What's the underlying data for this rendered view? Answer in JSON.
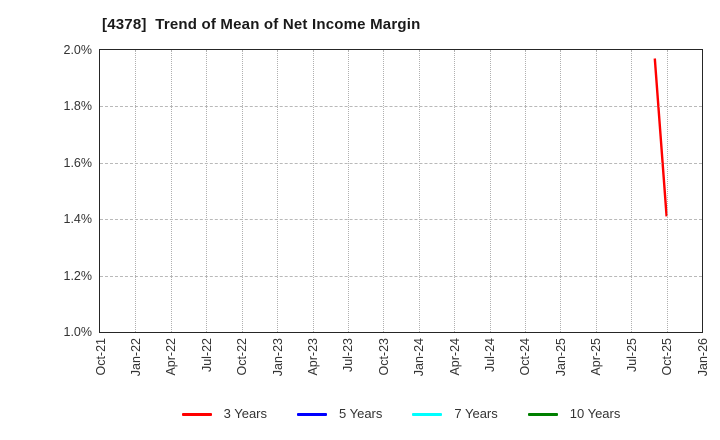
{
  "chart_data": {
    "type": "line",
    "title": "[4378]  Trend of Mean of Net Income Margin",
    "xlabel": "",
    "ylabel": "",
    "ylim": [
      1.0,
      2.0
    ],
    "y_tick_step": 0.2,
    "y_ticks": [
      {
        "value": 2.0,
        "label": "2.0%"
      },
      {
        "value": 1.8,
        "label": "1.8%"
      },
      {
        "value": 1.6,
        "label": "1.6%"
      },
      {
        "value": 1.4,
        "label": "1.4%"
      },
      {
        "value": 1.2,
        "label": "1.2%"
      },
      {
        "value": 1.0,
        "label": "1.0%"
      }
    ],
    "x_ticks": [
      "Oct-21",
      "Jan-22",
      "Apr-22",
      "Jul-22",
      "Oct-22",
      "Jan-23",
      "Apr-23",
      "Jul-23",
      "Oct-23",
      "Jan-24",
      "Apr-24",
      "Jul-24",
      "Oct-24",
      "Jan-25",
      "Apr-25",
      "Jul-25",
      "Oct-25",
      "Jan-26"
    ],
    "grid": {
      "vertical_style": "dotted",
      "horizontal_style": "dashed",
      "color": "#b0b0b0"
    },
    "legend_position": "bottom",
    "series": [
      {
        "name": "3 Years",
        "color": "#ff0000",
        "points": [
          {
            "x_label": "Sep-25",
            "x_index": 15.6667,
            "value_pct": 1.97
          },
          {
            "x_label": "Oct-25",
            "x_index": 16.0,
            "value_pct": 1.41
          }
        ]
      },
      {
        "name": "5 Years",
        "color": "#0000ff",
        "points": []
      },
      {
        "name": "7 Years",
        "color": "#00ffff",
        "points": []
      },
      {
        "name": "10 Years",
        "color": "#008000",
        "points": []
      }
    ]
  }
}
